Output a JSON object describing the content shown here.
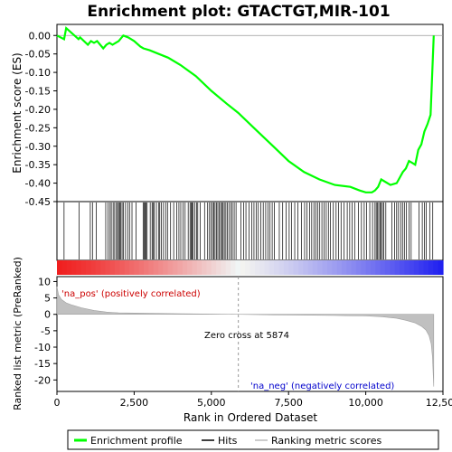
{
  "chart_data": {
    "type": "line",
    "title": "Enrichment plot: GTACTGT,MIR-101",
    "es_panel": {
      "ylabel": "Enrichment score (ES)",
      "ylim": [
        -0.45,
        0.03
      ],
      "yticks": [
        0.0,
        -0.05,
        -0.1,
        -0.15,
        -0.2,
        -0.25,
        -0.3,
        -0.35,
        -0.4,
        -0.45
      ],
      "ytick_labels": [
        "0.00",
        "-0.05",
        "-0.10",
        "-0.15",
        "-0.20",
        "-0.25",
        "-0.30",
        "-0.35",
        "-0.40",
        "-0.45"
      ],
      "color": "#00ff00",
      "x": [
        0,
        230,
        300,
        700,
        750,
        1000,
        1100,
        1200,
        1300,
        1500,
        1600,
        1700,
        1800,
        1900,
        2000,
        2100,
        2150,
        2300,
        2400,
        2500,
        2700,
        2800,
        3000,
        3300,
        3600,
        4000,
        4500,
        5000,
        5500,
        5874,
        6500,
        7000,
        7500,
        8000,
        8500,
        9000,
        9500,
        9800,
        10000,
        10200,
        10300,
        10400,
        10500,
        10600,
        10800,
        11000,
        11100,
        11200,
        11300,
        11400,
        11500,
        11600,
        11700,
        11800,
        11900,
        12000,
        12100,
        12200
      ],
      "y": [
        0.0,
        -0.01,
        0.02,
        -0.01,
        -0.005,
        -0.025,
        -0.015,
        -0.02,
        -0.015,
        -0.035,
        -0.025,
        -0.02,
        -0.025,
        -0.02,
        -0.015,
        -0.005,
        -0.0,
        -0.005,
        -0.01,
        -0.015,
        -0.03,
        -0.035,
        -0.04,
        -0.05,
        -0.06,
        -0.08,
        -0.11,
        -0.15,
        -0.185,
        -0.21,
        -0.26,
        -0.3,
        -0.34,
        -0.37,
        -0.39,
        -0.405,
        -0.41,
        -0.42,
        -0.425,
        -0.425,
        -0.42,
        -0.41,
        -0.39,
        -0.395,
        -0.405,
        -0.4,
        -0.385,
        -0.37,
        -0.36,
        -0.34,
        -0.345,
        -0.35,
        -0.31,
        -0.295,
        -0.26,
        -0.24,
        -0.215,
        0.0
      ]
    },
    "hits": [
      230,
      720,
      1080,
      1150,
      1270,
      1580,
      1650,
      1720,
      1760,
      1820,
      1870,
      1930,
      1960,
      2000,
      2040,
      2070,
      2110,
      2150,
      2220,
      2290,
      2350,
      2430,
      2560,
      2790,
      2820,
      2850,
      2880,
      2920,
      3020,
      3080,
      3110,
      3150,
      3220,
      3300,
      3330,
      3380,
      3450,
      3520,
      3580,
      3680,
      3780,
      3880,
      3950,
      4010,
      4080,
      4150,
      4250,
      4310,
      4350,
      4380,
      4410,
      4460,
      4520,
      4560,
      4640,
      4780,
      4880,
      4940,
      4990,
      5040,
      5080,
      5120,
      5170,
      5210,
      5260,
      5300,
      5340,
      5380,
      5420,
      5470,
      5520,
      5570,
      5630,
      5680,
      5740,
      5800,
      5960,
      6050,
      6120,
      6220,
      6310,
      6380,
      6450,
      6520,
      6600,
      6680,
      6760,
      6830,
      6900,
      6970,
      7040,
      7200,
      7310,
      7420,
      7520,
      7600,
      7700,
      7800,
      7920,
      8020,
      8100,
      8180,
      8250,
      8320,
      8380,
      8440,
      8510,
      8580,
      8650,
      8720,
      8790,
      8860,
      8950,
      9040,
      9120,
      9200,
      9300,
      9400,
      9480,
      9560,
      9640,
      9760,
      9860,
      9950,
      10030,
      10130,
      10220,
      10300,
      10340,
      10380,
      10420,
      10460,
      10500,
      10540,
      10580,
      10650,
      10850,
      10930,
      11000,
      11060,
      11130,
      11190,
      11250,
      11320,
      11400,
      11470,
      11720,
      11830,
      11900,
      11960,
      12070,
      12170
    ],
    "metric_panel": {
      "ylabel": "Ranked list metric (PreRanked)",
      "xlabel": "Rank in Ordered Dataset",
      "ylim": [
        -23.5,
        11.5
      ],
      "yticks": [
        10,
        5,
        0,
        -5,
        -10,
        -15,
        -20
      ],
      "ytick_labels": [
        "10",
        "5",
        "0",
        "-5",
        "-10",
        "-15",
        "-20"
      ],
      "x": [
        0,
        50,
        150,
        300,
        500,
        800,
        1200,
        1600,
        2000,
        3000,
        4000,
        5000,
        5874,
        7000,
        8000,
        9000,
        10000,
        10500,
        11000,
        11300,
        11600,
        11800,
        11950,
        12050,
        12120,
        12160,
        12200,
        12200
      ],
      "y": [
        8.5,
        6.0,
        4.5,
        3.5,
        2.8,
        2.0,
        1.2,
        0.7,
        0.45,
        0.3,
        0.2,
        0.1,
        0.0,
        -0.15,
        -0.25,
        -0.35,
        -0.5,
        -0.7,
        -1.2,
        -1.8,
        -2.6,
        -3.6,
        -4.8,
        -6.5,
        -9.0,
        -13.0,
        -22.0,
        0.0
      ],
      "zero_cross_label": "Zero cross at 5874",
      "zero_cross": 5874,
      "pos_label": "'na_pos' (positively correlated)",
      "neg_label": "'na_neg' (negatively correlated)"
    },
    "xlim": [
      0,
      12500
    ],
    "xticks": [
      0,
      2500,
      5000,
      7500,
      10000,
      12500
    ],
    "xtick_labels": [
      "0",
      "2,500",
      "5,000",
      "7,500",
      "10,000",
      "12,500"
    ],
    "legend": {
      "placement": "bottom",
      "items": [
        "Enrichment profile",
        "Hits",
        "Ranking metric scores"
      ]
    }
  }
}
